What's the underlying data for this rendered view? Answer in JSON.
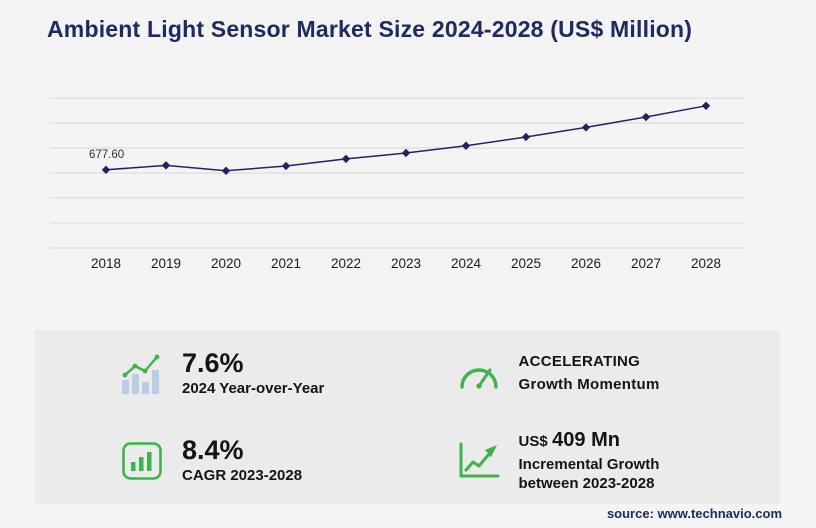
{
  "page": {
    "title": "Ambient Light Sensor Market Size 2024-2028 (US$ Million)",
    "source": "source: www.technavio.com"
  },
  "colors": {
    "navy": "#1e2a63",
    "line": "#262262",
    "green": "#3cb44a",
    "grid": "#d9d9d9",
    "background": "#f4f4f5",
    "panel": "#ebebec",
    "bar_blue": "#b9cde6",
    "text_dark": "#141414"
  },
  "icons": {
    "yoy": "bar-chart-trend-icon",
    "momentum": "speedometer-icon",
    "cagr": "bar-chart-box-icon",
    "incremental": "growth-chart-icon"
  },
  "chart_data": {
    "type": "line",
    "title": "Ambient Light Sensor Market Size 2024-2028 (US$ Million)",
    "x": [
      "2018",
      "2019",
      "2020",
      "2021",
      "2022",
      "2023",
      "2024",
      "2025",
      "2026",
      "2027",
      "2028"
    ],
    "values": [
      677.6,
      716,
      669,
      711,
      772,
      823.6,
      886.2,
      962.3,
      1045.2,
      1135.1,
      1232.6
    ],
    "first_value_label": "677.60",
    "ylim": [
      0,
      1300
    ],
    "xlabel": "",
    "ylabel": "US$ Million",
    "grid": "horizontal",
    "gridline_count": 7,
    "legend": "none",
    "marker": "diamond"
  },
  "stats": {
    "yoy": {
      "value": "7.6%",
      "label": "2024 Year-over-Year"
    },
    "momentum": {
      "line1": "ACCELERATING",
      "line2": "Growth Momentum"
    },
    "cagr": {
      "value": "8.4%",
      "label": "CAGR 2023-2028"
    },
    "incremental": {
      "currency": "US$",
      "value": "409 Mn",
      "line1": "Incremental Growth",
      "line2": "between 2023-2028"
    }
  }
}
